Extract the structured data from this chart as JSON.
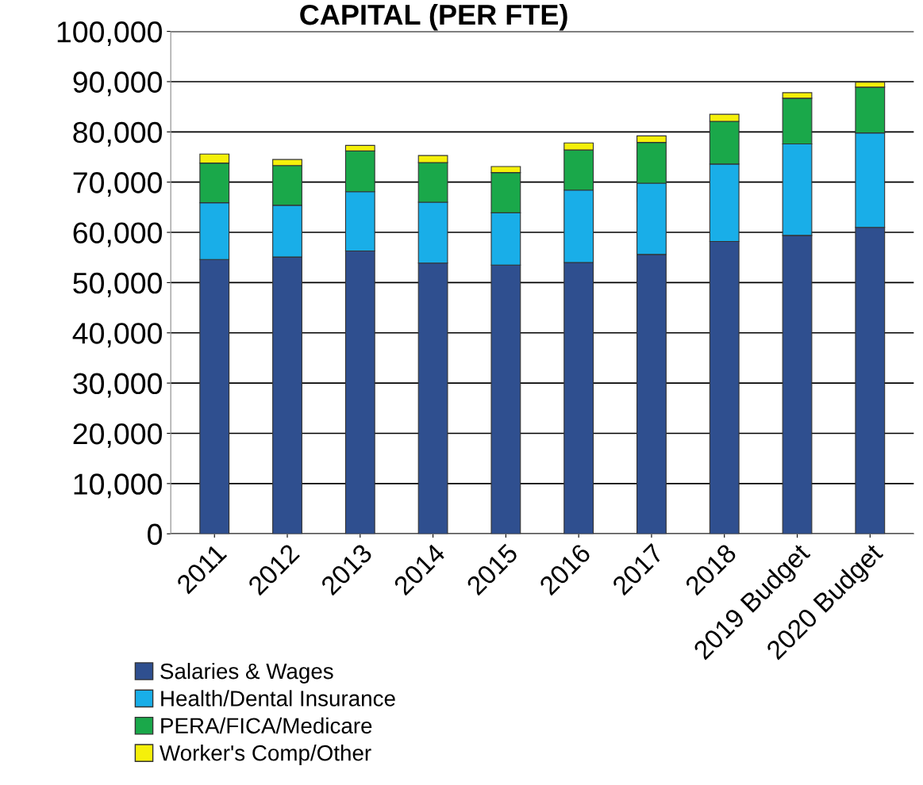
{
  "chart_data": {
    "type": "bar",
    "title": "CAPITAL (PER FTE)",
    "stacked": true,
    "categories": [
      "2011",
      "2012",
      "2013",
      "2014",
      "2015",
      "2016",
      "2017",
      "2018",
      "2019 Budget",
      "2020 Budget"
    ],
    "series": [
      {
        "name": "Salaries & Wages",
        "color": "#2f4f8f",
        "values": [
          54600,
          55100,
          56300,
          53900,
          53500,
          54000,
          55600,
          58200,
          59400,
          61000
        ]
      },
      {
        "name": "Health/Dental Insurance",
        "color": "#19aee8",
        "values": [
          11300,
          10300,
          11800,
          12100,
          10400,
          14400,
          14200,
          15400,
          18200,
          18800
        ]
      },
      {
        "name": "PERA/FICA/Medicare",
        "color": "#1aa84a",
        "values": [
          7900,
          7900,
          8100,
          7900,
          8000,
          8000,
          8100,
          8500,
          9100,
          9100
        ]
      },
      {
        "name": "Worker's Comp/Other",
        "color": "#f5f00a",
        "values": [
          1800,
          1200,
          1100,
          1400,
          1200,
          1400,
          1300,
          1400,
          1100,
          1000
        ]
      }
    ],
    "ylim": [
      0,
      100000
    ],
    "yticks": [
      {
        "value": 0,
        "label": "0"
      },
      {
        "value": 10000,
        "label": "10,000"
      },
      {
        "value": 20000,
        "label": "20,000"
      },
      {
        "value": 30000,
        "label": "30,000"
      },
      {
        "value": 40000,
        "label": "40,000"
      },
      {
        "value": 50000,
        "label": "50,000"
      },
      {
        "value": 60000,
        "label": "60,000"
      },
      {
        "value": 70000,
        "label": "70,000"
      },
      {
        "value": 80000,
        "label": "80,000"
      },
      {
        "value": 90000,
        "label": "90,000"
      },
      {
        "value": 100000,
        "label": "100,000"
      }
    ],
    "grid": "y",
    "legend": "bottom left"
  }
}
